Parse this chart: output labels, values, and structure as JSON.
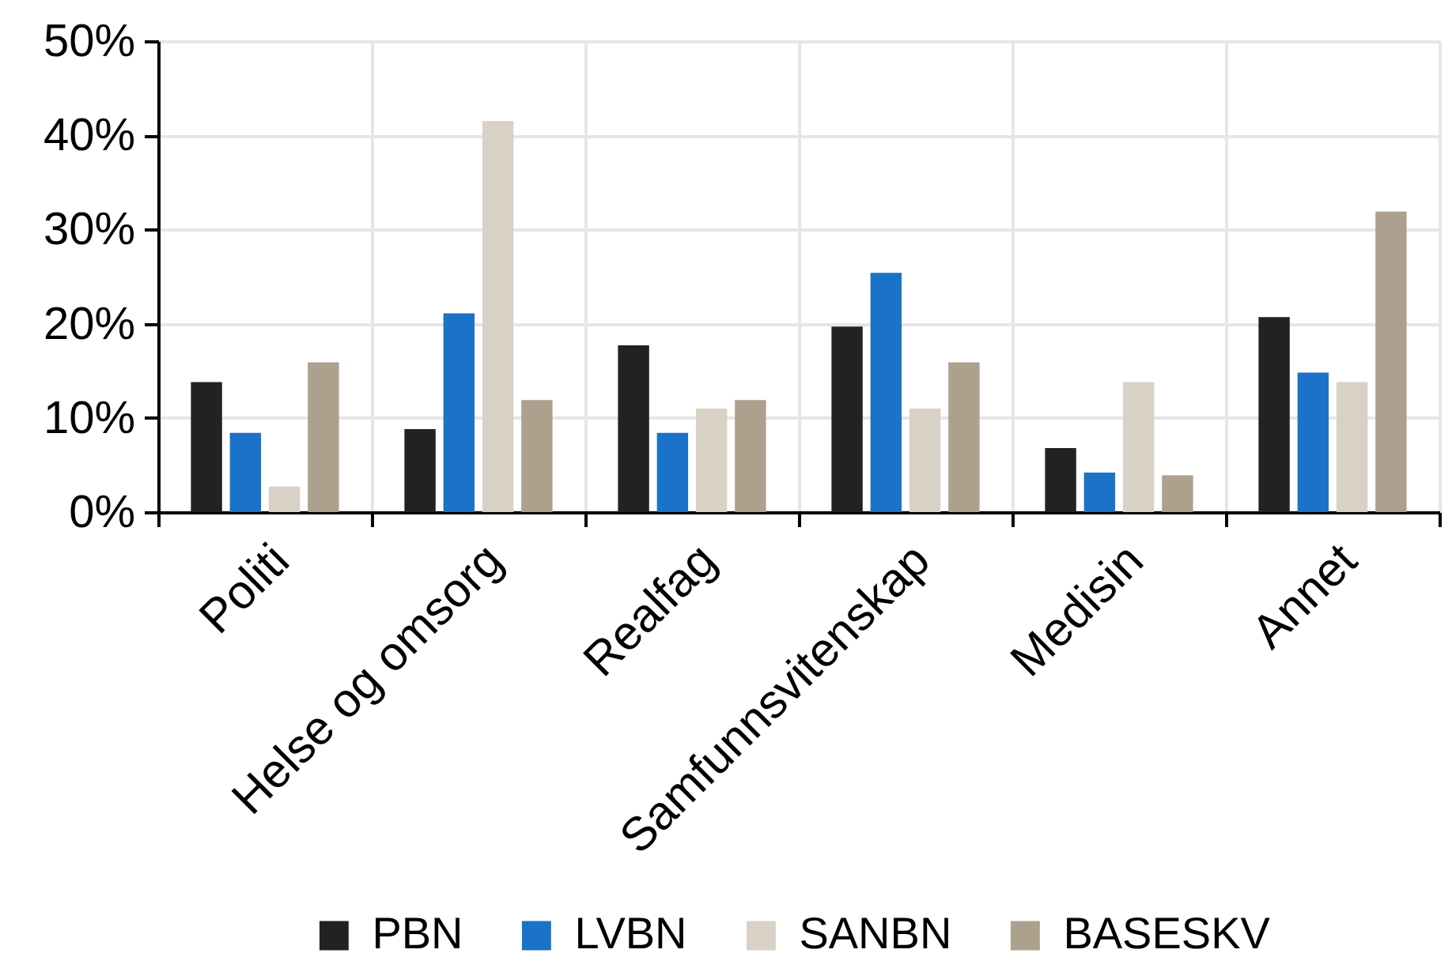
{
  "chart_data": {
    "type": "bar",
    "categories": [
      "Politi",
      "Helse og omsorg",
      "Realfag",
      "Samfunnsvitenskap",
      "Medisin",
      "Annet"
    ],
    "series": [
      {
        "name": "PBN",
        "color": "#222222",
        "values": [
          13.8,
          8.8,
          17.7,
          19.7,
          6.8,
          20.7
        ]
      },
      {
        "name": "LVBN",
        "color": "#1b73c8",
        "values": [
          8.4,
          21.1,
          8.4,
          25.4,
          4.2,
          14.8
        ]
      },
      {
        "name": "SANBN",
        "color": "#d8d1c5",
        "values": [
          2.7,
          41.5,
          11.0,
          11.0,
          13.8,
          13.8
        ]
      },
      {
        "name": "BASESKV",
        "color": "#ada08d",
        "values": [
          15.9,
          11.9,
          11.9,
          15.9,
          3.9,
          31.9
        ]
      }
    ],
    "ylim": [
      0,
      50
    ],
    "yticks": [
      {
        "value": 0,
        "label": "0%"
      },
      {
        "value": 10,
        "label": "10%"
      },
      {
        "value": 20,
        "label": "20%"
      },
      {
        "value": 30,
        "label": "30%"
      },
      {
        "value": 40,
        "label": "40%"
      },
      {
        "value": 50,
        "label": "50%"
      }
    ],
    "grid": true,
    "legend": "bottom"
  }
}
